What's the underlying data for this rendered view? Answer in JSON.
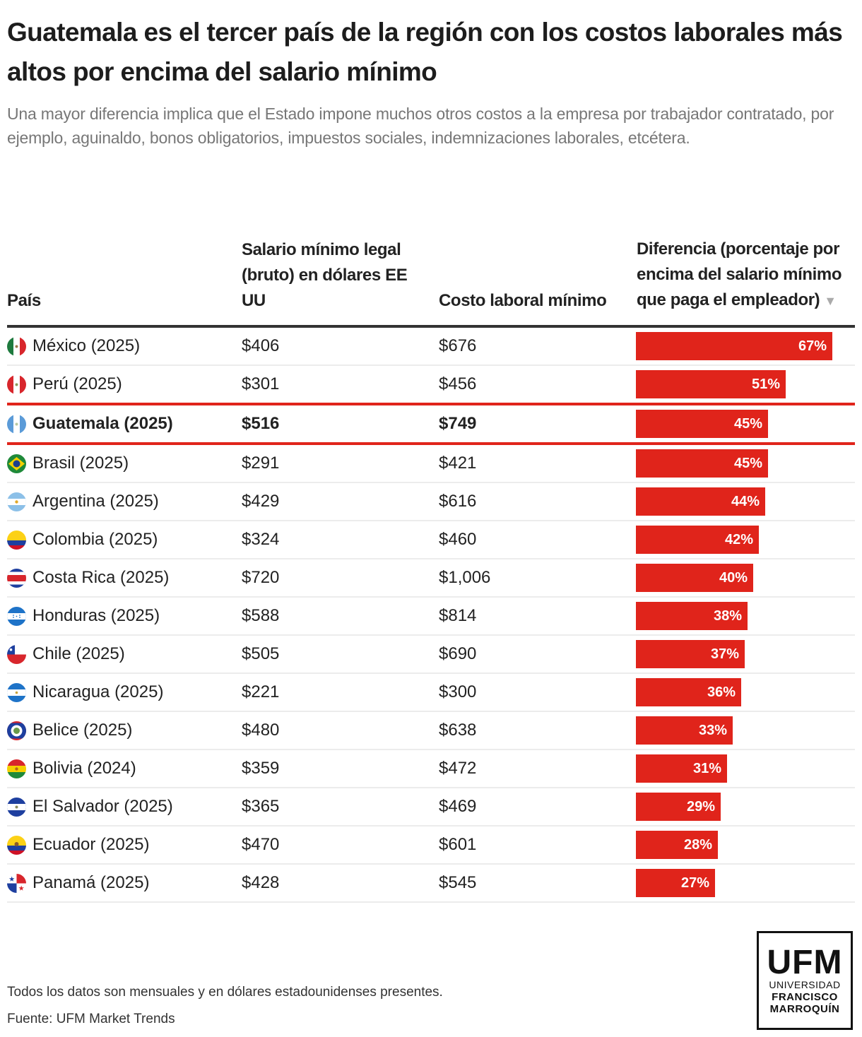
{
  "title": "Guatemala es el tercer país de la región con los costos laborales más altos por encima del salario mínimo",
  "subtitle": "Una mayor diferencia implica que el Estado impone muchos otros costos a la empresa por trabajador contratado, por ejemplo, aguinaldo, bonos obligatorios, impuestos sociales, indemnizaciones laborales, etcétera.",
  "columns": [
    "País",
    "Salario mínimo legal (bruto) en dólares EE UU",
    "Costo laboral mínimo",
    "Diferencia (porcentaje por encima del salario mínimo que paga el empleador)"
  ],
  "sort_indicator": "▼",
  "colors": {
    "bar": "#e0241b",
    "highlight": "#e0241b",
    "header_rule": "#333333"
  },
  "chart_data": {
    "type": "table",
    "title": "Guatemala es el tercer país de la región con los costos laborales más altos por encima del salario mínimo",
    "highlighted": "Guatemala (2025)",
    "rows": [
      {
        "country": "México (2025)",
        "flag": "mx-flag",
        "salary": "$406",
        "cost": "$676",
        "diff": 67,
        "diff_label": "67%"
      },
      {
        "country": "Perú (2025)",
        "flag": "pe-flag",
        "salary": "$301",
        "cost": "$456",
        "diff": 51,
        "diff_label": "51%"
      },
      {
        "country": "Guatemala (2025)",
        "flag": "gt-flag",
        "salary": "$516",
        "cost": "$749",
        "diff": 45,
        "diff_label": "45%",
        "highlight": true
      },
      {
        "country": "Brasil (2025)",
        "flag": "br-flag",
        "salary": "$291",
        "cost": "$421",
        "diff": 45,
        "diff_label": "45%"
      },
      {
        "country": "Argentina (2025)",
        "flag": "ar-flag",
        "salary": "$429",
        "cost": "$616",
        "diff": 44,
        "diff_label": "44%"
      },
      {
        "country": "Colombia (2025)",
        "flag": "co-flag",
        "salary": "$324",
        "cost": "$460",
        "diff": 42,
        "diff_label": "42%"
      },
      {
        "country": "Costa Rica (2025)",
        "flag": "cr-flag",
        "salary": "$720",
        "cost": "$1,006",
        "diff": 40,
        "diff_label": "40%"
      },
      {
        "country": "Honduras (2025)",
        "flag": "hn-flag",
        "salary": "$588",
        "cost": "$814",
        "diff": 38,
        "diff_label": "38%"
      },
      {
        "country": "Chile (2025)",
        "flag": "cl-flag",
        "salary": "$505",
        "cost": "$690",
        "diff": 37,
        "diff_label": "37%"
      },
      {
        "country": "Nicaragua (2025)",
        "flag": "ni-flag",
        "salary": "$221",
        "cost": "$300",
        "diff": 36,
        "diff_label": "36%"
      },
      {
        "country": "Belice (2025)",
        "flag": "bz-flag",
        "salary": "$480",
        "cost": "$638",
        "diff": 33,
        "diff_label": "33%"
      },
      {
        "country": "Bolivia (2024)",
        "flag": "bo-flag",
        "salary": "$359",
        "cost": "$472",
        "diff": 31,
        "diff_label": "31%"
      },
      {
        "country": "El Salvador (2025)",
        "flag": "sv-flag",
        "salary": "$365",
        "cost": "$469",
        "diff": 29,
        "diff_label": "29%"
      },
      {
        "country": "Ecuador (2025)",
        "flag": "ec-flag",
        "salary": "$470",
        "cost": "$601",
        "diff": 28,
        "diff_label": "28%"
      },
      {
        "country": "Panamá (2025)",
        "flag": "pa-flag",
        "salary": "$428",
        "cost": "$545",
        "diff": 27,
        "diff_label": "27%"
      }
    ],
    "bar_max": 67
  },
  "footer": {
    "note": "Todos los datos son mensuales y en dólares estadounidenses presentes.",
    "source": "Fuente: UFM Market Trends"
  },
  "logo": {
    "big": "UFM",
    "line1": "UNIVERSIDAD",
    "line2": "FRANCISCO",
    "line3": "MARROQUÍN"
  }
}
